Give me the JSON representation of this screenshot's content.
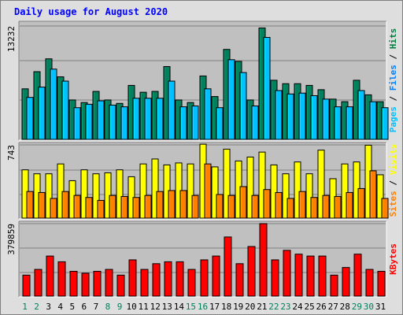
{
  "title": "Daily usage for August 2020",
  "chart_data": [
    {
      "type": "bar",
      "categories": [
        "1",
        "2",
        "3",
        "4",
        "5",
        "6",
        "7",
        "8",
        "9",
        "10",
        "11",
        "12",
        "13",
        "14",
        "15",
        "16",
        "17",
        "18",
        "19",
        "20",
        "21",
        "22",
        "23",
        "24",
        "25",
        "26",
        "27",
        "28",
        "29",
        "30",
        "31"
      ],
      "weekend_days": [
        1,
        2,
        8,
        9,
        15,
        16,
        22,
        23,
        29,
        30
      ],
      "ylim": [
        0,
        13232
      ],
      "max_tick_label": "13232",
      "legend": [
        {
          "label": "Pages",
          "color": "#00c0ff"
        },
        {
          "sep": " / "
        },
        {
          "label": "Files",
          "color": "#0080ff"
        },
        {
          "sep": " / "
        },
        {
          "label": "Hits",
          "color": "#008040"
        }
      ],
      "series": [
        {
          "name": "Hits",
          "color": "#00805c",
          "values": [
            5900,
            7900,
            9400,
            7300,
            4600,
            4300,
            5600,
            4600,
            4200,
            6300,
            5500,
            5600,
            8500,
            4600,
            4300,
            7400,
            5000,
            10500,
            9100,
            4600,
            13000,
            6900,
            6500,
            6500,
            6300,
            5800,
            4700,
            4400,
            6900,
            5200,
            4400
          ]
        },
        {
          "name": "Files",
          "color": "#00c0ff",
          "values": [
            4900,
            6100,
            8200,
            6800,
            3700,
            4100,
            4500,
            4000,
            3800,
            4800,
            4800,
            4800,
            6800,
            3800,
            3900,
            5900,
            3700,
            9300,
            7800,
            3900,
            11900,
            5700,
            5300,
            5400,
            5100,
            4700,
            3800,
            3800,
            5700,
            4400,
            3700
          ]
        }
      ]
    },
    {
      "type": "bar",
      "ylim": [
        0,
        743
      ],
      "max_tick_label": "743",
      "legend": [
        {
          "label": "Sites",
          "color": "#ff8000"
        },
        {
          "sep": " / "
        },
        {
          "label": "Visits",
          "color": "#ffff00"
        }
      ],
      "series": [
        {
          "name": "Visits",
          "color": "#ffff00",
          "values": [
            490,
            450,
            450,
            550,
            380,
            490,
            450,
            460,
            490,
            420,
            550,
            600,
            540,
            560,
            550,
            750,
            520,
            700,
            580,
            620,
            670,
            540,
            450,
            570,
            450,
            690,
            400,
            550,
            570,
            740,
            440
          ]
        },
        {
          "name": "Sites",
          "color": "#ff8000",
          "values": [
            270,
            260,
            200,
            270,
            230,
            210,
            180,
            230,
            220,
            210,
            230,
            270,
            280,
            280,
            230,
            550,
            240,
            230,
            320,
            230,
            290,
            260,
            200,
            270,
            210,
            230,
            220,
            260,
            300,
            480,
            200
          ]
        }
      ]
    },
    {
      "type": "bar",
      "ylim": [
        0,
        379859
      ],
      "max_tick_label": "379859",
      "legend": [
        {
          "label": "KBytes",
          "color": "#ff0000"
        }
      ],
      "series": [
        {
          "name": "KBytes",
          "color": "#ff0000",
          "values": [
            110000,
            140000,
            210000,
            180000,
            130000,
            120000,
            130000,
            140000,
            110000,
            190000,
            140000,
            170000,
            180000,
            180000,
            140000,
            190000,
            210000,
            310000,
            170000,
            260000,
            380000,
            190000,
            240000,
            220000,
            210000,
            210000,
            110000,
            150000,
            220000,
            140000,
            130000
          ]
        }
      ]
    }
  ]
}
